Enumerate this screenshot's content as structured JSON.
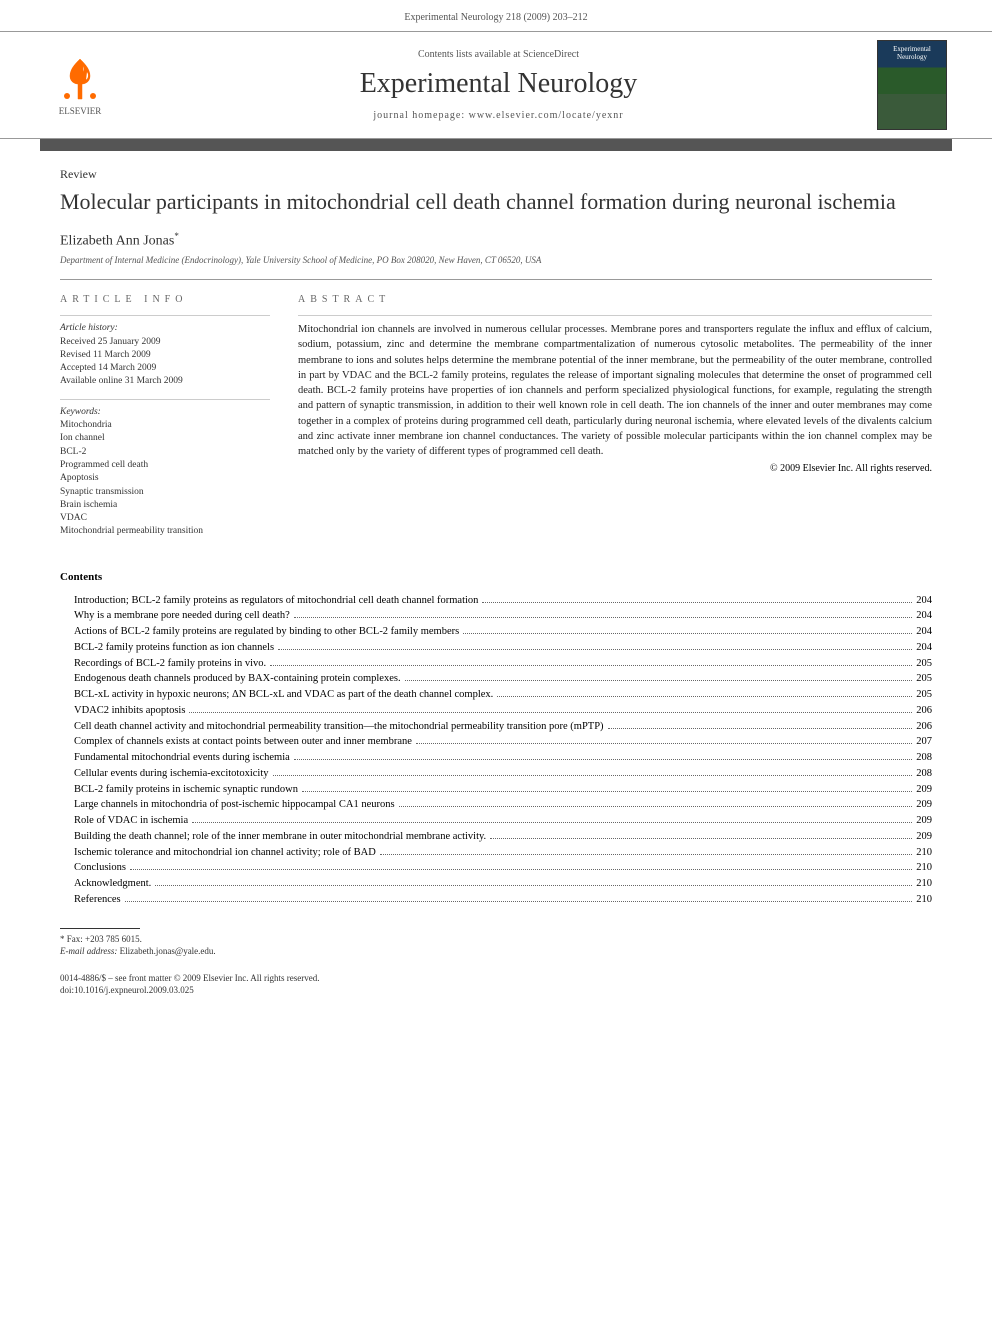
{
  "header": {
    "citation": "Experimental Neurology 218 (2009) 203–212"
  },
  "banner": {
    "contents_text": "Contents lists available at ",
    "contents_link": "ScienceDirect",
    "journal_name": "Experimental Neurology",
    "homepage_label": "journal homepage: ",
    "homepage_url": "www.elsevier.com/locate/yexnr",
    "publisher": "ELSEVIER",
    "cover_title": "Experimental Neurology"
  },
  "article": {
    "type": "Review",
    "title": "Molecular participants in mitochondrial cell death channel formation during neuronal ischemia",
    "author": "Elizabeth Ann Jonas",
    "author_marker": "*",
    "affiliation": "Department of Internal Medicine (Endocrinology), Yale University School of Medicine, PO Box 208020, New Haven, CT 06520, USA"
  },
  "info": {
    "heading": "ARTICLE INFO",
    "history_label": "Article history:",
    "received": "Received 25 January 2009",
    "revised": "Revised 11 March 2009",
    "accepted": "Accepted 14 March 2009",
    "online": "Available online 31 March 2009",
    "keywords_label": "Keywords:",
    "keywords": [
      "Mitochondria",
      "Ion channel",
      "BCL-2",
      "Programmed cell death",
      "Apoptosis",
      "Synaptic transmission",
      "Brain ischemia",
      "VDAC",
      "Mitochondrial permeability transition"
    ]
  },
  "abstract": {
    "heading": "ABSTRACT",
    "text": "Mitochondrial ion channels are involved in numerous cellular processes. Membrane pores and transporters regulate the influx and efflux of calcium, sodium, potassium, zinc and determine the membrane compartmentalization of numerous cytosolic metabolites. The permeability of the inner membrane to ions and solutes helps determine the membrane potential of the inner membrane, but the permeability of the outer membrane, controlled in part by VDAC and the BCL-2 family proteins, regulates the release of important signaling molecules that determine the onset of programmed cell death. BCL-2 family proteins have properties of ion channels and perform specialized physiological functions, for example, regulating the strength and pattern of synaptic transmission, in addition to their well known role in cell death. The ion channels of the inner and outer membranes may come together in a complex of proteins during programmed cell death, particularly during neuronal ischemia, where elevated levels of the divalents calcium and zinc activate inner membrane ion channel conductances. The variety of possible molecular participants within the ion channel complex may be matched only by the variety of different types of programmed cell death.",
    "copyright": "© 2009 Elsevier Inc. All rights reserved."
  },
  "contents_label": "Contents",
  "toc": [
    {
      "title": "Introduction; BCL-2 family proteins as regulators of mitochondrial cell death channel formation",
      "page": "204"
    },
    {
      "title": "Why is a membrane pore needed during cell death?",
      "page": "204"
    },
    {
      "title": "Actions of BCL-2 family proteins are regulated by binding to other BCL-2 family members",
      "page": "204"
    },
    {
      "title": "BCL-2 family proteins function as ion channels",
      "page": "204"
    },
    {
      "title": "Recordings of BCL-2 family proteins in vivo.",
      "page": "205"
    },
    {
      "title": "Endogenous death channels produced by BAX-containing protein complexes.",
      "page": "205"
    },
    {
      "title": "BCL-xL activity in hypoxic neurons; ΔN BCL-xL and VDAC as part of the death channel complex.",
      "page": "205"
    },
    {
      "title": "VDAC2 inhibits apoptosis",
      "page": "206"
    },
    {
      "title": "Cell death channel activity and mitochondrial permeability transition—the mitochondrial permeability transition pore (mPTP)",
      "page": "206"
    },
    {
      "title": "Complex of channels exists at contact points between outer and inner membrane",
      "page": "207"
    },
    {
      "title": "Fundamental mitochondrial events during ischemia",
      "page": "208"
    },
    {
      "title": "Cellular events during ischemia-excitotoxicity",
      "page": "208"
    },
    {
      "title": "BCL-2 family proteins in ischemic synaptic rundown",
      "page": "209"
    },
    {
      "title": "Large channels in mitochondria of post-ischemic hippocampal CA1 neurons",
      "page": "209"
    },
    {
      "title": "Role of VDAC in ischemia",
      "page": "209"
    },
    {
      "title": "Building the death channel; role of the inner membrane in outer mitochondrial membrane activity.",
      "page": "209"
    },
    {
      "title": "Ischemic tolerance and mitochondrial ion channel activity; role of BAD",
      "page": "210"
    },
    {
      "title": "Conclusions",
      "page": "210"
    },
    {
      "title": "Acknowledgment.",
      "page": "210"
    },
    {
      "title": "References",
      "page": "210"
    }
  ],
  "footer": {
    "fax": "* Fax: +203 785 6015.",
    "email_label": "E-mail address:",
    "email": "Elizabeth.jonas@yale.edu.",
    "issn_line": "0014-4886/$ – see front matter © 2009 Elsevier Inc. All rights reserved.",
    "doi_line": "doi:10.1016/j.expneurol.2009.03.025"
  },
  "colors": {
    "elsevier_orange": "#ff6b00",
    "divider_gray": "#555555",
    "text_primary": "#000000",
    "text_muted": "#555555",
    "rule": "#999999"
  }
}
